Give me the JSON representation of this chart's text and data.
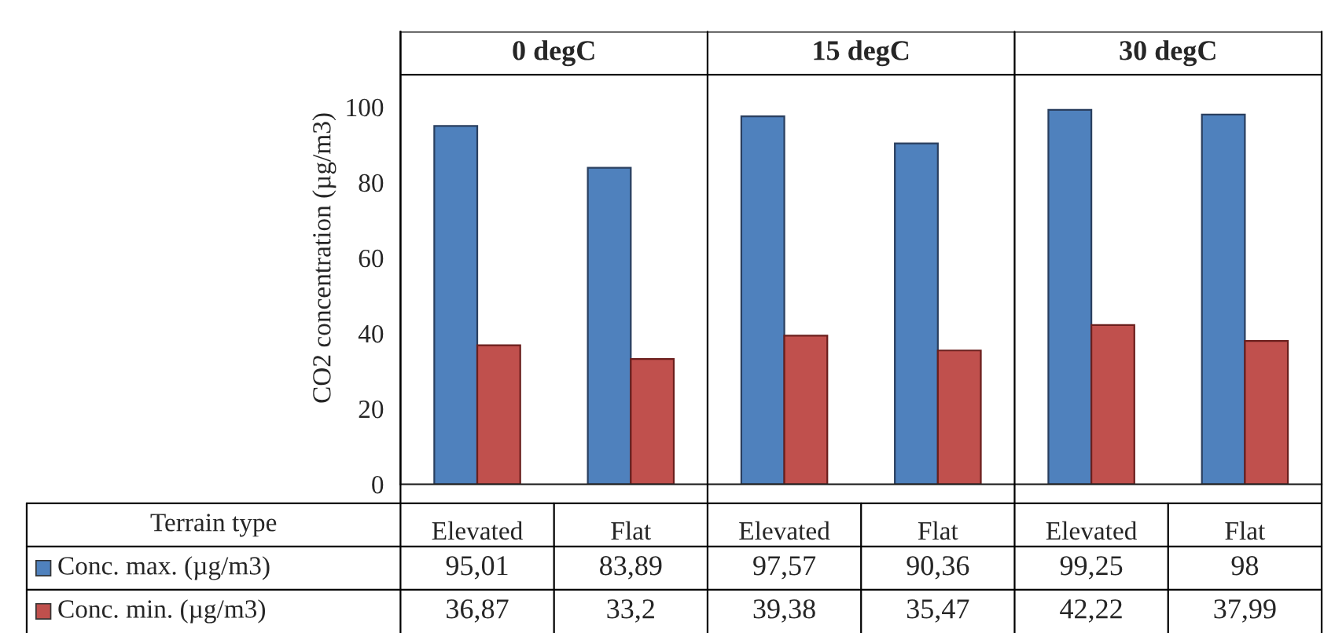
{
  "chart_data": {
    "type": "bar",
    "ylabel": "CO2 concentration (µg/m3)",
    "xlabel": "Terrain type",
    "categories": [
      "Elevated",
      "Flat",
      "Elevated",
      "Flat",
      "Elevated",
      "Flat"
    ],
    "series": [
      {
        "name": "Conc. max. (µg/m3)",
        "color": "#4f81bd",
        "values": [
          95.01,
          83.89,
          97.57,
          90.36,
          99.25,
          98
        ],
        "value_labels": [
          "95,01",
          "83,89",
          "97,57",
          "90,36",
          "99,25",
          "98"
        ]
      },
      {
        "name": "Conc. min. (µg/m3)",
        "color": "#c0504d",
        "values": [
          36.87,
          33.2,
          39.38,
          35.47,
          42.22,
          37.99
        ],
        "value_labels": [
          "36,87",
          "33,2",
          "39,38",
          "35,47",
          "42,22",
          "37,99"
        ]
      }
    ],
    "annotations": [
      "0 degC",
      "15 degC",
      "30 degC"
    ],
    "ylim": [
      0,
      120
    ],
    "yticks": [
      0,
      20,
      40,
      60,
      80,
      100
    ],
    "legend": "bottom",
    "grid": false
  }
}
